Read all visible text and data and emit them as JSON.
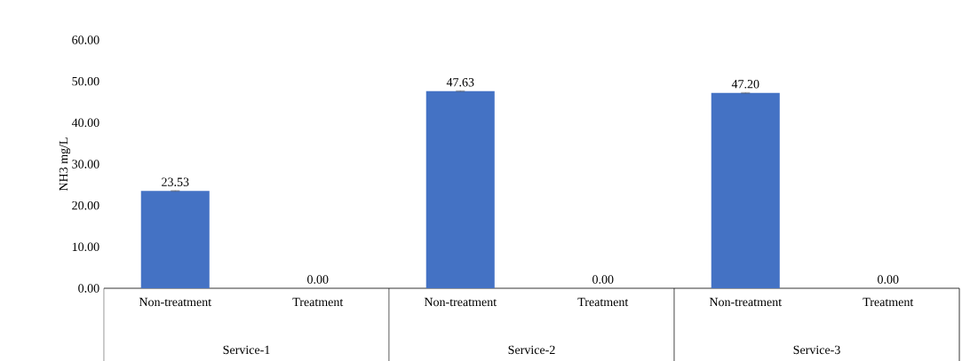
{
  "chart_data": {
    "type": "bar",
    "ylabel": "NH3 mg/L",
    "categories": [
      "Non-treatment",
      "Treatment",
      "Non-treatment",
      "Treatment",
      "Non-treatment",
      "Treatment"
    ],
    "values": [
      23.53,
      0,
      47.63,
      0,
      47.2,
      0
    ],
    "errors": [
      0.1,
      null,
      0.1,
      null,
      0.1,
      null
    ],
    "value_labels": [
      "23.53",
      "0.00",
      "47.63",
      "0.00",
      "47.20",
      "0.00"
    ],
    "color": "#4472c4",
    "ylim": [
      0,
      60
    ],
    "yticks": [
      {
        "value": 0,
        "label": "0.00"
      },
      {
        "value": 10,
        "label": "10.00"
      },
      {
        "value": 20,
        "label": "20.00"
      },
      {
        "value": 30,
        "label": "30.00"
      },
      {
        "value": 40,
        "label": "40.00"
      },
      {
        "value": 50,
        "label": "50.00"
      },
      {
        "value": 60,
        "label": "60.00"
      }
    ],
    "annotations": [
      "Service-1",
      "Service-2",
      "Service-3"
    ],
    "grid": false
  }
}
